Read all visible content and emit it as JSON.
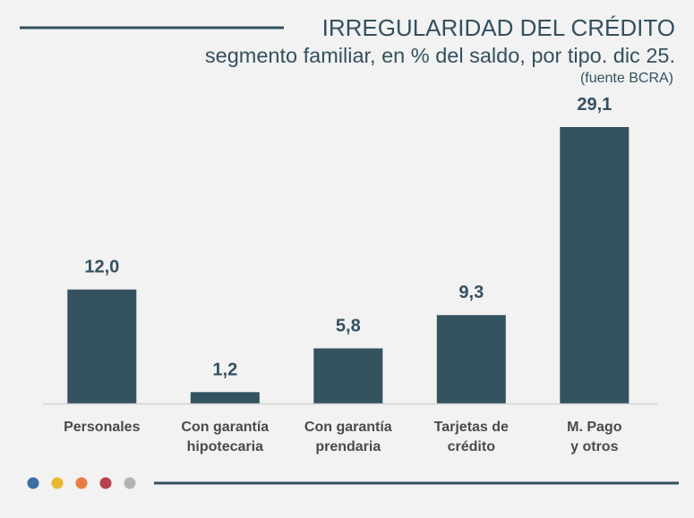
{
  "header": {
    "title": "IRREGULARIDAD DEL CRÉDITO",
    "subtitle": "segmento familiar, en % del saldo, por tipo. dic 25.",
    "source": "(fuente BCRA)"
  },
  "colors": {
    "bar": "#34535f",
    "rule": "#34505f",
    "baseline": "#d3d3d3",
    "dots": [
      "#3a6fa3",
      "#e8b831",
      "#e87d43",
      "#b8414b",
      "#b3b3b3"
    ]
  },
  "chart_data": {
    "type": "bar",
    "title": "IRREGULARIDAD DEL CRÉDITO",
    "subtitle": "segmento familiar, en % del saldo, por tipo. dic 25.",
    "xlabel": "",
    "ylabel": "",
    "ylim": [
      0,
      29.1
    ],
    "grid": false,
    "categories": [
      [
        "Personales"
      ],
      [
        "Con garantía",
        "hipotecaria"
      ],
      [
        "Con garantía",
        "prendaria"
      ],
      [
        "Tarjetas de",
        "crédito"
      ],
      [
        "M. Pago",
        "y otros"
      ]
    ],
    "values": [
      12.0,
      1.2,
      5.8,
      9.3,
      29.1
    ],
    "value_labels": [
      "12,0",
      "1,2",
      "5,8",
      "9,3",
      "29,1"
    ]
  }
}
